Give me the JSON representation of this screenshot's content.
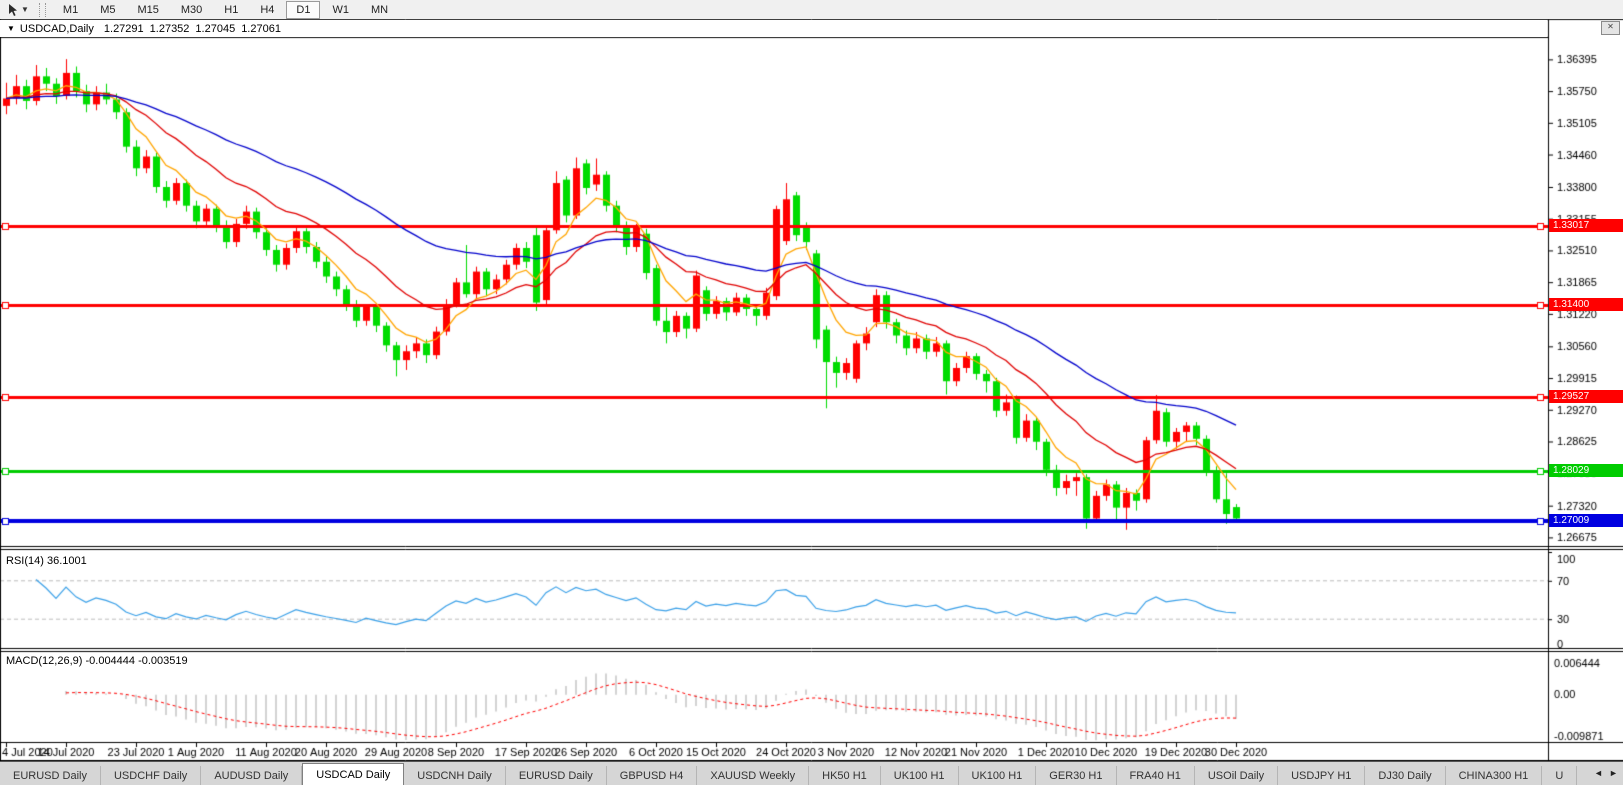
{
  "toolbar": {
    "pointer_icon": "cursor-arrow-icon",
    "dropdown_caret": "▼",
    "timeframes": [
      "M1",
      "M5",
      "M15",
      "M30",
      "H1",
      "H4",
      "D1",
      "W1",
      "MN"
    ],
    "active_timeframe": "D1"
  },
  "window_button": {
    "glyph": "✕"
  },
  "title": {
    "caret": "▼",
    "symbol": "USDCAD,Daily",
    "open": "1.27291",
    "high": "1.27352",
    "low": "1.27045",
    "close": "1.27061"
  },
  "indicators": {
    "rsi_label": "RSI(14)",
    "rsi_value": "36.1001",
    "macd_label": "MACD(12,26,9)",
    "macd_value": "-0.004444",
    "macd_signal": "-0.003519"
  },
  "tabs": {
    "items": [
      "EURUSD Daily",
      "USDCHF Daily",
      "AUDUSD Daily",
      "USDCAD Daily",
      "USDCNH Daily",
      "EURUSD Daily",
      "GBPUSD H4",
      "XAUUSD Weekly",
      "HK50 H1",
      "UK100 H1",
      "UK100 H1",
      "GER30 H1",
      "FRA40 H1",
      "USOil Daily",
      "USDJPY H1",
      "DJ30 Daily",
      "CHINA300 H1",
      "U"
    ],
    "active_index": 3,
    "scroll_left": "◄",
    "scroll_right": "►"
  },
  "chart_data": {
    "type": "candlestick",
    "symbol": "USDCAD",
    "timeframe": "Daily",
    "bull_color": "#FF0000",
    "bear_color": "#00DC00",
    "ylim": [
      1.265,
      1.3685
    ],
    "y_ticks": [
      "1.36395",
      "1.35750",
      "1.35105",
      "1.34460",
      "1.33800",
      "1.33155",
      "1.32510",
      "1.31865",
      "1.31220",
      "1.30560",
      "1.29915",
      "1.29270",
      "1.28625",
      "1.27980",
      "1.27320",
      "1.26675"
    ],
    "x_dates": [
      "4 Jul 2020",
      "14 Jul 2020",
      "23 Jul 2020",
      "1 Aug 2020",
      "11 Aug 2020",
      "20 Aug 2020",
      "29 Aug 2020",
      "8 Sep 2020",
      "17 Sep 2020",
      "26 Sep 2020",
      "6 Oct 2020",
      "15 Oct 2020",
      "24 Oct 2020",
      "3 Nov 2020",
      "12 Nov 2020",
      "21 Nov 2020",
      "1 Dec 2020",
      "10 Dec 2020",
      "19 Dec 2020",
      "30 Dec 2020"
    ],
    "x_date_bars": [
      0,
      6,
      13,
      19,
      26,
      32,
      39,
      45,
      52,
      58,
      65,
      71,
      78,
      84,
      91,
      97,
      104,
      110,
      117,
      123
    ],
    "h_lines": [
      {
        "price": 1.33017,
        "label": "1.33017",
        "color": "#FF0000",
        "width": 3
      },
      {
        "price": 1.314,
        "label": "1.31400",
        "color": "#FF0000",
        "width": 3
      },
      {
        "price": 1.29527,
        "label": "1.29527",
        "color": "#FF0000",
        "width": 3
      },
      {
        "price": 1.28029,
        "label": "1.28029",
        "color": "#00CC00",
        "width": 3
      },
      {
        "price": 1.27009,
        "label": "1.27009",
        "color": "#0000E0",
        "width": 4
      }
    ],
    "moving_averages": [
      {
        "name": "fast",
        "period": 6,
        "color": "#FFA500"
      },
      {
        "name": "medium",
        "period": 16,
        "color": "#E00000"
      },
      {
        "name": "slow",
        "period": 40,
        "color": "#0000CC"
      }
    ],
    "rsi": {
      "period": 14,
      "levels": [
        70,
        30
      ],
      "axis_labels": [
        "100",
        "70",
        "30",
        "0"
      ],
      "color": "#3AA0E8"
    },
    "macd": {
      "fast": 12,
      "slow": 26,
      "signal": 9,
      "axis_labels": [
        "0.006444",
        "0.00",
        "-0.009871"
      ],
      "range": [
        -0.009871,
        0.0089
      ],
      "hist_color": "#C0C0C0",
      "signal_color": "#FF0000"
    },
    "candles": [
      [
        1.3545,
        1.3592,
        1.3528,
        1.356
      ],
      [
        1.356,
        1.3608,
        1.3548,
        1.3585
      ],
      [
        1.3585,
        1.3598,
        1.3538,
        1.3555
      ],
      [
        1.3555,
        1.3628,
        1.3546,
        1.3605
      ],
      [
        1.3605,
        1.3622,
        1.3575,
        1.359
      ],
      [
        1.359,
        1.3601,
        1.3549,
        1.3565
      ],
      [
        1.3565,
        1.364,
        1.3558,
        1.3612
      ],
      [
        1.3612,
        1.3625,
        1.3562,
        1.3575
      ],
      [
        1.3575,
        1.3588,
        1.3532,
        1.3548
      ],
      [
        1.3548,
        1.3585,
        1.3536,
        1.3572
      ],
      [
        1.3572,
        1.359,
        1.3548,
        1.3558
      ],
      [
        1.3558,
        1.357,
        1.3518,
        1.3532
      ],
      [
        1.3532,
        1.354,
        1.345,
        1.3462
      ],
      [
        1.3462,
        1.3475,
        1.3402,
        1.3418
      ],
      [
        1.3418,
        1.3455,
        1.3408,
        1.3442
      ],
      [
        1.3442,
        1.345,
        1.3368,
        1.338
      ],
      [
        1.338,
        1.3392,
        1.3338,
        1.3352
      ],
      [
        1.3352,
        1.3398,
        1.3344,
        1.3388
      ],
      [
        1.3388,
        1.3395,
        1.333,
        1.3342
      ],
      [
        1.3342,
        1.3352,
        1.3296,
        1.331
      ],
      [
        1.331,
        1.3345,
        1.3298,
        1.3336
      ],
      [
        1.3336,
        1.3344,
        1.3288,
        1.33
      ],
      [
        1.33,
        1.3312,
        1.3255,
        1.3268
      ],
      [
        1.3268,
        1.3315,
        1.3258,
        1.3305
      ],
      [
        1.3305,
        1.3342,
        1.3295,
        1.333
      ],
      [
        1.333,
        1.3338,
        1.3275,
        1.3288
      ],
      [
        1.3288,
        1.3296,
        1.324,
        1.3252
      ],
      [
        1.3252,
        1.3262,
        1.3208,
        1.3222
      ],
      [
        1.3222,
        1.3265,
        1.3212,
        1.3256
      ],
      [
        1.3256,
        1.3298,
        1.3246,
        1.329
      ],
      [
        1.329,
        1.3296,
        1.3245,
        1.3258
      ],
      [
        1.3258,
        1.3268,
        1.3215,
        1.3228
      ],
      [
        1.3228,
        1.3238,
        1.3185,
        1.3198
      ],
      [
        1.3198,
        1.3208,
        1.3158,
        1.3172
      ],
      [
        1.3172,
        1.318,
        1.3128,
        1.3142
      ],
      [
        1.3142,
        1.315,
        1.3095,
        1.3108
      ],
      [
        1.3108,
        1.3142,
        1.3098,
        1.3136
      ],
      [
        1.3136,
        1.3142,
        1.3085,
        1.3098
      ],
      [
        1.3098,
        1.3105,
        1.3045,
        1.3058
      ],
      [
        1.3058,
        1.3065,
        1.2995,
        1.3028
      ],
      [
        1.3028,
        1.3058,
        1.3008,
        1.3046
      ],
      [
        1.3046,
        1.3075,
        1.3032,
        1.3062
      ],
      [
        1.3062,
        1.307,
        1.3022,
        1.3038
      ],
      [
        1.3038,
        1.3096,
        1.303,
        1.3086
      ],
      [
        1.3086,
        1.3152,
        1.3078,
        1.3142
      ],
      [
        1.3142,
        1.3195,
        1.3135,
        1.3186
      ],
      [
        1.3186,
        1.3262,
        1.3155,
        1.3162
      ],
      [
        1.3162,
        1.3218,
        1.3152,
        1.3208
      ],
      [
        1.3208,
        1.3215,
        1.3158,
        1.3172
      ],
      [
        1.3172,
        1.3202,
        1.3162,
        1.3192
      ],
      [
        1.3192,
        1.3232,
        1.3182,
        1.3222
      ],
      [
        1.3222,
        1.3265,
        1.3212,
        1.3256
      ],
      [
        1.3256,
        1.3268,
        1.3215,
        1.3228
      ],
      [
        1.3282,
        1.3298,
        1.3128,
        1.3145
      ],
      [
        1.315,
        1.3302,
        1.3142,
        1.3292
      ],
      [
        1.3292,
        1.3412,
        1.3285,
        1.3388
      ],
      [
        1.3395,
        1.3402,
        1.3308,
        1.3322
      ],
      [
        1.3322,
        1.344,
        1.3315,
        1.3418
      ],
      [
        1.3428,
        1.3436,
        1.3365,
        1.3378
      ],
      [
        1.3385,
        1.3438,
        1.3372,
        1.3405
      ],
      [
        1.3405,
        1.3412,
        1.333,
        1.3342
      ],
      [
        1.3342,
        1.3352,
        1.3288,
        1.3302
      ],
      [
        1.3302,
        1.331,
        1.3242,
        1.3258
      ],
      [
        1.3258,
        1.3305,
        1.3248,
        1.3298
      ],
      [
        1.3285,
        1.3295,
        1.3192,
        1.3205
      ],
      [
        1.3215,
        1.3222,
        1.3098,
        1.3108
      ],
      [
        1.3108,
        1.3135,
        1.3062,
        1.3085
      ],
      [
        1.3085,
        1.3128,
        1.3075,
        1.3118
      ],
      [
        1.3118,
        1.3125,
        1.3072,
        1.3092
      ],
      [
        1.3092,
        1.321,
        1.3085,
        1.32
      ],
      [
        1.317,
        1.3178,
        1.3108,
        1.3122
      ],
      [
        1.3122,
        1.3158,
        1.3112,
        1.3148
      ],
      [
        1.3148,
        1.3155,
        1.3108,
        1.3125
      ],
      [
        1.3125,
        1.3165,
        1.3118,
        1.3155
      ],
      [
        1.3155,
        1.3162,
        1.3118,
        1.3132
      ],
      [
        1.3132,
        1.3142,
        1.3098,
        1.3118
      ],
      [
        1.3118,
        1.3175,
        1.311,
        1.3165
      ],
      [
        1.3158,
        1.3342,
        1.315,
        1.3335
      ],
      [
        1.327,
        1.3388,
        1.3262,
        1.3355
      ],
      [
        1.3363,
        1.337,
        1.327,
        1.3282
      ],
      [
        1.33,
        1.3308,
        1.3252,
        1.3268
      ],
      [
        1.3245,
        1.3252,
        1.3052,
        1.307
      ],
      [
        1.309,
        1.3098,
        1.293,
        1.3024
      ],
      [
        1.3024,
        1.3035,
        1.2972,
        1.3002
      ],
      [
        1.3002,
        1.3032,
        1.2988,
        1.3022
      ],
      [
        1.299,
        1.3068,
        1.2982,
        1.3062
      ],
      [
        1.3062,
        1.3095,
        1.3048,
        1.3082
      ],
      [
        1.3105,
        1.3172,
        1.3095,
        1.316
      ],
      [
        1.316,
        1.3168,
        1.3092,
        1.3105
      ],
      [
        1.3105,
        1.3112,
        1.3062,
        1.3078
      ],
      [
        1.3078,
        1.3088,
        1.3038,
        1.3052
      ],
      [
        1.3052,
        1.3085,
        1.3042,
        1.3072
      ],
      [
        1.3072,
        1.308,
        1.303,
        1.3045
      ],
      [
        1.3045,
        1.3075,
        1.3035,
        1.3062
      ],
      [
        1.3062,
        1.3068,
        1.2958,
        1.2985
      ],
      [
        1.2985,
        1.3022,
        1.2975,
        1.3012
      ],
      [
        1.3012,
        1.3045,
        1.3002,
        1.3036
      ],
      [
        1.3036,
        1.3042,
        1.2988,
        1.3
      ],
      [
        1.3,
        1.3008,
        1.2962,
        1.2985
      ],
      [
        1.2985,
        1.2992,
        1.2912,
        1.2925
      ],
      [
        1.2925,
        1.2958,
        1.2915,
        1.2942
      ],
      [
        1.295,
        1.2956,
        1.2858,
        1.287
      ],
      [
        1.287,
        1.2918,
        1.2862,
        1.2905
      ],
      [
        1.2905,
        1.2912,
        1.2845,
        1.2862
      ],
      [
        1.2862,
        1.2868,
        1.2792,
        1.2805
      ],
      [
        1.2805,
        1.2815,
        1.2752,
        1.2768
      ],
      [
        1.2768,
        1.2795,
        1.2755,
        1.2782
      ],
      [
        1.2782,
        1.2798,
        1.2752,
        1.279
      ],
      [
        1.279,
        1.2796,
        1.2685,
        1.2706
      ],
      [
        1.2706,
        1.2762,
        1.2698,
        1.2752
      ],
      [
        1.2752,
        1.2785,
        1.2742,
        1.2775
      ],
      [
        1.2775,
        1.2782,
        1.2702,
        1.2728
      ],
      [
        1.2728,
        1.2768,
        1.2683,
        1.2758
      ],
      [
        1.2758,
        1.2765,
        1.2722,
        1.2742
      ],
      [
        1.2745,
        1.2872,
        1.2738,
        1.2865
      ],
      [
        1.2865,
        1.2957,
        1.2858,
        1.2925
      ],
      [
        1.2922,
        1.293,
        1.2852,
        1.2862
      ],
      [
        1.2862,
        1.289,
        1.2848,
        1.2882
      ],
      [
        1.2882,
        1.2902,
        1.2862,
        1.2895
      ],
      [
        1.2895,
        1.2902,
        1.2855,
        1.2868
      ],
      [
        1.2868,
        1.2875,
        1.2792,
        1.2802
      ],
      [
        1.2802,
        1.2812,
        1.2738,
        1.2745
      ],
      [
        1.2745,
        1.2798,
        1.2695,
        1.2715
      ],
      [
        1.27291,
        1.27352,
        1.27045,
        1.27061
      ]
    ]
  }
}
